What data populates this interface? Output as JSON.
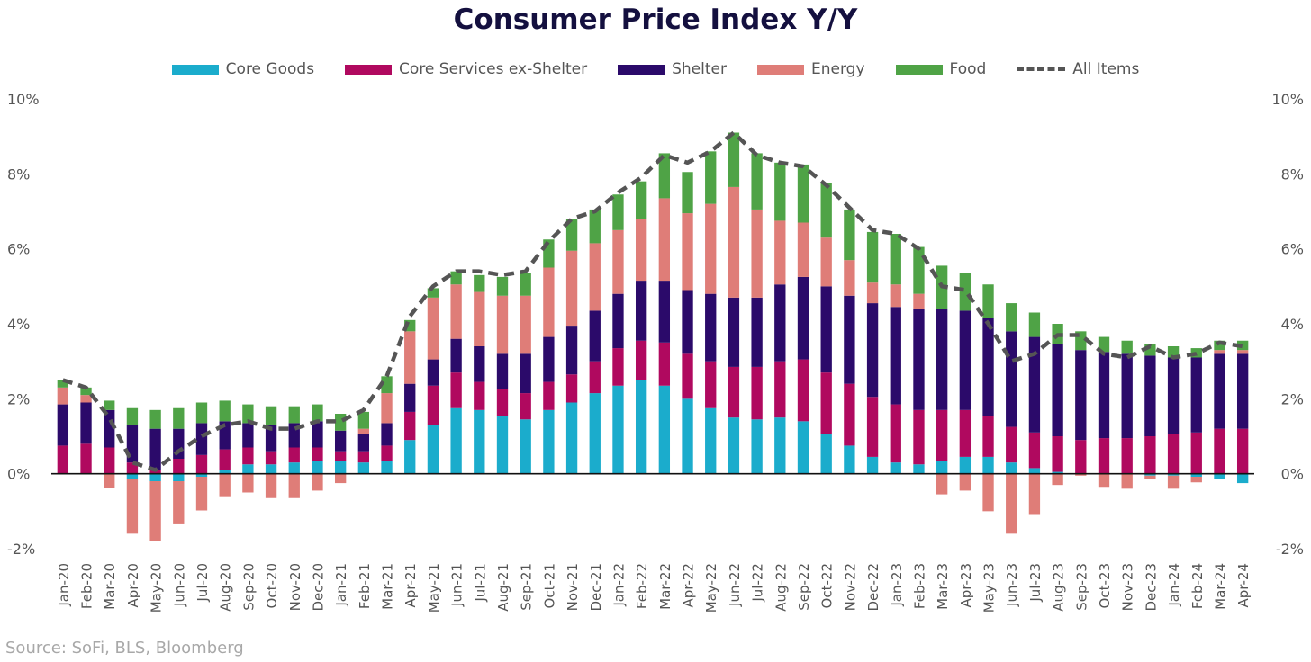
{
  "chart_data": {
    "type": "bar",
    "title": "Consumer Price Index Y/Y",
    "source": "Source: SoFi, BLS, Bloomberg",
    "ylim": [
      -2,
      10
    ],
    "yticks": [
      "-2%",
      "0%",
      "2%",
      "4%",
      "6%",
      "8%",
      "10%"
    ],
    "stacked": true,
    "legend_position": "top",
    "grid": false,
    "categories": [
      "Jan-20",
      "Feb-20",
      "Mar-20",
      "Apr-20",
      "May-20",
      "Jun-20",
      "Jul-20",
      "Aug-20",
      "Sep-20",
      "Oct-20",
      "Nov-20",
      "Dec-20",
      "Jan-21",
      "Feb-21",
      "Mar-21",
      "Apr-21",
      "May-21",
      "Jun-21",
      "Jul-21",
      "Aug-21",
      "Sep-21",
      "Oct-21",
      "Nov-21",
      "Dec-21",
      "Jan-22",
      "Feb-22",
      "Mar-22",
      "Apr-22",
      "May-22",
      "Jun-22",
      "Jul-22",
      "Aug-22",
      "Sep-22",
      "Oct-22",
      "Nov-22",
      "Dec-22",
      "Jan-23",
      "Feb-23",
      "Mar-23",
      "Apr-23",
      "May-23",
      "Jun-23",
      "Jul-23",
      "Aug-23",
      "Sep-23",
      "Oct-23",
      "Nov-23",
      "Dec-23",
      "Jan-24",
      "Feb-24",
      "Mar-24",
      "Apr-24"
    ],
    "series": [
      {
        "name": "Core Goods",
        "type": "bar",
        "color": "#1baccc",
        "values": [
          0.0,
          0.0,
          0.0,
          -0.15,
          -0.2,
          -0.2,
          -0.08,
          0.1,
          0.25,
          0.25,
          0.3,
          0.35,
          0.35,
          0.3,
          0.35,
          0.9,
          1.3,
          1.75,
          1.7,
          1.55,
          1.45,
          1.7,
          1.9,
          2.15,
          2.35,
          2.5,
          2.35,
          2.0,
          1.75,
          1.5,
          1.45,
          1.5,
          1.4,
          1.05,
          0.75,
          0.45,
          0.3,
          0.25,
          0.35,
          0.45,
          0.45,
          0.3,
          0.15,
          0.05,
          0.0,
          0.0,
          0.0,
          -0.05,
          -0.05,
          -0.08,
          -0.15,
          -0.25
        ]
      },
      {
        "name": "Core Services ex-Shelter",
        "type": "bar",
        "color": "#b0095f",
        "values": [
          0.75,
          0.8,
          0.7,
          0.3,
          0.1,
          0.4,
          0.5,
          0.55,
          0.45,
          0.35,
          0.4,
          0.35,
          0.25,
          0.3,
          0.4,
          0.75,
          1.05,
          0.95,
          0.75,
          0.7,
          0.7,
          0.75,
          0.75,
          0.85,
          1.0,
          1.05,
          1.15,
          1.2,
          1.25,
          1.35,
          1.4,
          1.5,
          1.65,
          1.65,
          1.65,
          1.6,
          1.55,
          1.45,
          1.35,
          1.25,
          1.1,
          0.95,
          0.95,
          0.95,
          0.9,
          0.95,
          0.95,
          1.0,
          1.05,
          1.1,
          1.2,
          1.2
        ]
      },
      {
        "name": "Shelter",
        "type": "bar",
        "color": "#2b0a6a",
        "values": [
          1.1,
          1.1,
          1.0,
          1.0,
          1.1,
          0.8,
          0.85,
          0.75,
          0.65,
          0.7,
          0.65,
          0.7,
          0.55,
          0.45,
          0.6,
          0.75,
          0.7,
          0.9,
          0.95,
          0.95,
          1.05,
          1.2,
          1.3,
          1.35,
          1.45,
          1.6,
          1.65,
          1.7,
          1.8,
          1.85,
          1.85,
          2.05,
          2.2,
          2.3,
          2.35,
          2.5,
          2.6,
          2.7,
          2.7,
          2.65,
          2.6,
          2.55,
          2.55,
          2.45,
          2.4,
          2.3,
          2.25,
          2.15,
          2.05,
          2.0,
          2.0,
          2.0
        ]
      },
      {
        "name": "Energy",
        "type": "bar",
        "color": "#df7d78",
        "values": [
          0.45,
          0.2,
          -0.38,
          -1.45,
          -1.6,
          -1.15,
          -0.9,
          -0.6,
          -0.5,
          -0.65,
          -0.65,
          -0.45,
          -0.25,
          0.15,
          0.8,
          1.4,
          1.65,
          1.45,
          1.45,
          1.55,
          1.55,
          1.85,
          2.0,
          1.8,
          1.7,
          1.65,
          2.2,
          2.05,
          2.4,
          2.95,
          2.35,
          1.7,
          1.45,
          1.3,
          0.95,
          0.55,
          0.6,
          0.4,
          -0.55,
          -0.45,
          -1.0,
          -1.6,
          -1.1,
          -0.3,
          -0.05,
          -0.35,
          -0.4,
          -0.1,
          -0.35,
          -0.15,
          0.1,
          0.1
        ]
      },
      {
        "name": "Food",
        "type": "bar",
        "color": "#4fa346",
        "values": [
          0.2,
          0.2,
          0.25,
          0.45,
          0.5,
          0.55,
          0.55,
          0.55,
          0.5,
          0.5,
          0.45,
          0.45,
          0.45,
          0.45,
          0.45,
          0.3,
          0.25,
          0.35,
          0.45,
          0.5,
          0.6,
          0.75,
          0.85,
          0.9,
          0.95,
          1.0,
          1.2,
          1.1,
          1.4,
          1.45,
          1.5,
          1.55,
          1.55,
          1.45,
          1.35,
          1.35,
          1.35,
          1.25,
          1.15,
          1.0,
          0.9,
          0.75,
          0.65,
          0.55,
          0.5,
          0.4,
          0.35,
          0.3,
          0.3,
          0.25,
          0.25,
          0.25
        ]
      },
      {
        "name": "All Items",
        "type": "line",
        "style": "dashed",
        "color": "#555555",
        "values": [
          2.5,
          2.3,
          1.5,
          0.3,
          0.1,
          0.6,
          1.0,
          1.3,
          1.4,
          1.2,
          1.2,
          1.4,
          1.4,
          1.7,
          2.6,
          4.2,
          5.0,
          5.4,
          5.4,
          5.3,
          5.4,
          6.2,
          6.8,
          7.0,
          7.5,
          7.9,
          8.5,
          8.3,
          8.6,
          9.1,
          8.5,
          8.3,
          8.2,
          7.7,
          7.1,
          6.5,
          6.4,
          6.0,
          5.0,
          4.9,
          4.0,
          3.0,
          3.2,
          3.7,
          3.7,
          3.2,
          3.1,
          3.4,
          3.1,
          3.2,
          3.5,
          3.4
        ]
      }
    ]
  }
}
